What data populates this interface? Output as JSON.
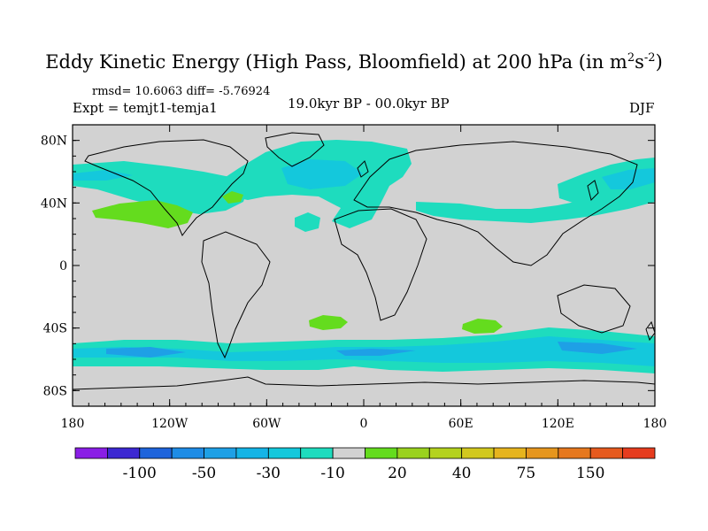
{
  "title": {
    "main": "Eddy Kinetic Energy (High Pass, Bloomfield) at 200 hPa (in m",
    "unit_exp1": "2",
    "unit_mid": "s",
    "unit_exp2": "-2",
    "close": ")"
  },
  "stats": "rmsd= 10.6063 diff= -5.76924",
  "experiment": "Expt = temjt1-temja1",
  "period": "19.0kyr BP - 00.0kyr BP",
  "season": "DJF",
  "axes": {
    "lat_labels": [
      "80N",
      "40N",
      "0",
      "40S",
      "80S"
    ],
    "lat_values": [
      80,
      40,
      0,
      -40,
      -80
    ],
    "lon_labels": [
      "180",
      "120W",
      "60W",
      "0",
      "60E",
      "120E",
      "180"
    ],
    "lon_values": [
      -180,
      -120,
      -60,
      0,
      60,
      120,
      180
    ]
  },
  "colorbar": {
    "colors": [
      "#8a1ee6",
      "#3c28d2",
      "#1e64dc",
      "#1e8ce6",
      "#1ea0e6",
      "#14b4e6",
      "#14c8dc",
      "#1edcbe",
      "#d2d2d2",
      "#64dc1e",
      "#9ad21e",
      "#b4d21e",
      "#d2c81e",
      "#e6b41e",
      "#e6961e",
      "#e6781e",
      "#e65a1e",
      "#e63c1e"
    ],
    "labels": [
      "-100",
      "-50",
      "-30",
      "-10",
      "20",
      "40",
      "75",
      "150"
    ]
  },
  "colors": {
    "ocean_land_background": "#d2d2d2",
    "light_negative": "#1edcbe",
    "medium_negative": "#14c8dc",
    "strong_negative": "#1ea0e6",
    "positive": "#64dc1e"
  }
}
